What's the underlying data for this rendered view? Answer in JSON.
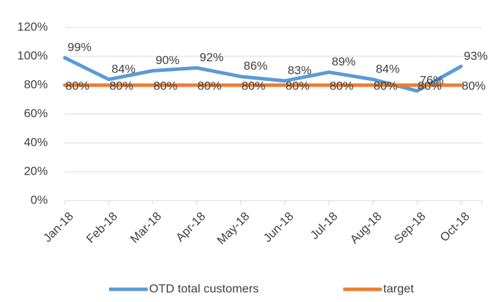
{
  "chart_data": {
    "type": "line",
    "categories": [
      "Jan-18",
      "Feb-18",
      "Mar-18",
      "Apr-18",
      "May-18",
      "Jun-18",
      "Jul-18",
      "Aug-18",
      "Sep-18",
      "Oct-18"
    ],
    "series": [
      {
        "name": "OTD total customers",
        "color": "#5b9bd5",
        "values": [
          99,
          84,
          90,
          92,
          86,
          83,
          89,
          84,
          76,
          93
        ],
        "value_labels": [
          "99%",
          "84%",
          "90%",
          "92%",
          "86%",
          "83%",
          "89%",
          "84%",
          "76%",
          "93%"
        ]
      },
      {
        "name": "target",
        "color": "#ed7d31",
        "values": [
          80,
          80,
          80,
          80,
          80,
          80,
          80,
          80,
          80,
          80
        ],
        "value_labels": [
          "80%",
          "80%",
          "80%",
          "80%",
          "80%",
          "80%",
          "80%",
          "80%",
          "80%",
          "80%"
        ]
      }
    ],
    "ylim": [
      0,
      120
    ],
    "yticks": [
      {
        "value": 0,
        "label": "0%"
      },
      {
        "value": 20,
        "label": "20%"
      },
      {
        "value": 40,
        "label": "40%"
      },
      {
        "value": 60,
        "label": "60%"
      },
      {
        "value": 80,
        "label": "80%"
      },
      {
        "value": 100,
        "label": "100%"
      },
      {
        "value": 120,
        "label": "120%"
      }
    ],
    "grid": true,
    "legend": "bottom"
  }
}
